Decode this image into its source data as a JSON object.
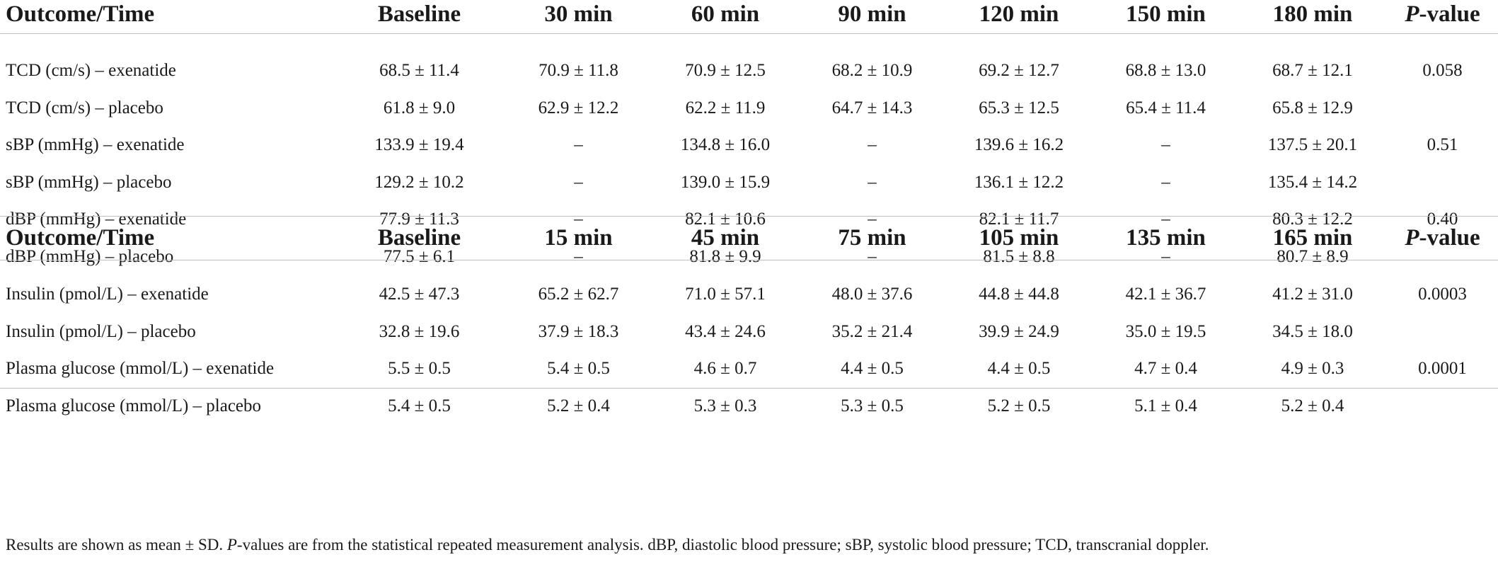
{
  "section1": {
    "header": {
      "outcome_time": "Outcome/Time",
      "cols": [
        "Baseline",
        "30 min",
        "60 min",
        "90 min",
        "120 min",
        "150 min",
        "180 min"
      ],
      "pvalue_italic": "P",
      "pvalue_rest": "-value"
    },
    "rows": [
      {
        "label": "TCD (cm/s) – exenatide",
        "values": [
          "68.5 ± 11.4",
          "70.9 ± 11.8",
          "70.9 ± 12.5",
          "68.2 ± 10.9",
          "69.2 ± 12.7",
          "68.8 ± 13.0",
          "68.7 ± 12.1"
        ],
        "p": "0.058"
      },
      {
        "label": "TCD (cm/s) – placebo",
        "values": [
          "61.8 ± 9.0",
          "62.9 ± 12.2",
          "62.2 ± 11.9",
          "64.7 ± 14.3",
          "65.3 ± 12.5",
          "65.4 ± 11.4",
          "65.8 ± 12.9"
        ],
        "p": ""
      },
      {
        "label": "sBP (mmHg) – exenatide",
        "values": [
          "133.9 ± 19.4",
          "–",
          "134.8 ± 16.0",
          "–",
          "139.6 ± 16.2",
          "–",
          "137.5 ± 20.1"
        ],
        "p": "0.51"
      },
      {
        "label": "sBP (mmHg) – placebo",
        "values": [
          "129.2 ± 10.2",
          "–",
          "139.0 ± 15.9",
          "–",
          "136.1 ± 12.2",
          "–",
          "135.4 ± 14.2"
        ],
        "p": ""
      },
      {
        "label": "dBP (mmHg) – exenatide",
        "values": [
          "77.9 ± 11.3",
          "–",
          "82.1 ± 10.6",
          "–",
          "82.1 ± 11.7",
          "–",
          "80.3 ± 12.2"
        ],
        "p": "0.40"
      },
      {
        "label": "dBP (mmHg) – placebo",
        "values": [
          "77.5 ± 6.1",
          "–",
          "81.8 ± 9.9",
          "–",
          "81.5 ± 8.8",
          "–",
          "80.7 ± 8.9"
        ],
        "p": ""
      }
    ]
  },
  "section2": {
    "header": {
      "outcome_time": "Outcome/Time",
      "cols": [
        "Baseline",
        "15 min",
        "45 min",
        "75 min",
        "105 min",
        "135 min",
        "165 min"
      ],
      "pvalue_italic": "P",
      "pvalue_rest": "-value"
    },
    "rows": [
      {
        "label": "Insulin (pmol/L) – exenatide",
        "values": [
          "42.5 ± 47.3",
          "65.2 ± 62.7",
          "71.0 ± 57.1",
          "48.0 ± 37.6",
          "44.8 ± 44.8",
          "42.1 ± 36.7",
          "41.2 ± 31.0"
        ],
        "p": "0.0003"
      },
      {
        "label": "Insulin (pmol/L) – placebo",
        "values": [
          "32.8 ± 19.6",
          "37.9 ± 18.3",
          "43.4 ± 24.6",
          "35.2 ± 21.4",
          "39.9 ± 24.9",
          "35.0 ± 19.5",
          "34.5 ± 18.0"
        ],
        "p": ""
      },
      {
        "label": "Plasma glucose (mmol/L) – exenatide",
        "values": [
          "5.5 ± 0.5",
          "5.4 ± 0.5",
          "4.6 ± 0.7",
          "4.4 ± 0.5",
          "4.4 ± 0.5",
          "4.7 ± 0.4",
          "4.9 ± 0.3"
        ],
        "p": "0.0001"
      },
      {
        "label": "Plasma glucose (mmol/L) – placebo",
        "values": [
          "5.4 ± 0.5",
          "5.2 ± 0.4",
          "5.3 ± 0.3",
          "5.3 ± 0.5",
          "5.2 ± 0.5",
          "5.1 ± 0.4",
          "5.2 ± 0.4"
        ],
        "p": ""
      }
    ]
  },
  "footnote": {
    "part1": "Results are shown as mean ± SD. ",
    "p_italic": "P",
    "part2": "-values are from the statistical repeated measurement analysis. dBP, diastolic blood pressure; sBP, systolic blood pressure; TCD, transcranial doppler."
  }
}
